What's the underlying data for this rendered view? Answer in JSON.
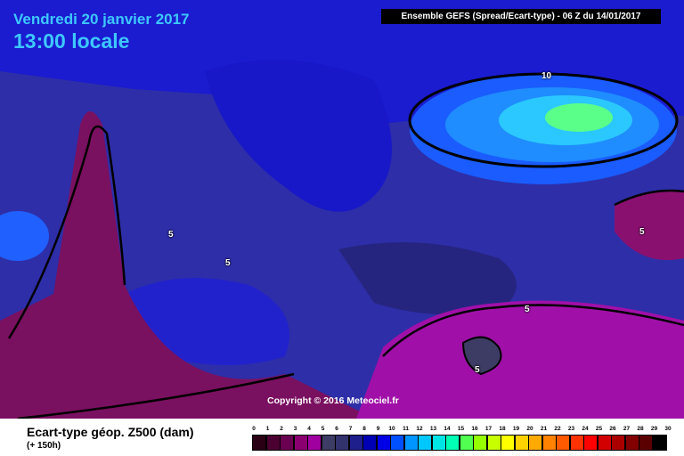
{
  "header": {
    "date": "Vendredi 20 janvier 2017",
    "local_time": "13:00 locale",
    "run_info": "Ensemble GEFS  (Spread/Ecart-type) - 06 Z du 14/01/2017"
  },
  "map": {
    "copyright": "Copyright © 2016 Meteociel.fr",
    "contour_labels": [
      {
        "text": "10"
      },
      {
        "text": "5"
      },
      {
        "text": "5"
      },
      {
        "text": "5"
      },
      {
        "text": "5"
      },
      {
        "text": "5"
      }
    ]
  },
  "footer": {
    "title": "Ecart-type géop. Z500 (dam)",
    "subtitle": "(+ 150h)"
  },
  "legend": {
    "ticks": [
      "0",
      "1",
      "2",
      "3",
      "4",
      "5",
      "6",
      "7",
      "8",
      "9",
      "10",
      "11",
      "12",
      "13",
      "14",
      "15",
      "16",
      "17",
      "18",
      "19",
      "20",
      "21",
      "22",
      "23",
      "24",
      "25",
      "26",
      "27",
      "28",
      "29",
      "30"
    ],
    "colors": [
      "#2a0014",
      "#4a0030",
      "#6a0050",
      "#8a0070",
      "#a000a0",
      "#3c3c64",
      "#32326e",
      "#1e1e8c",
      "#0000b4",
      "#0000e6",
      "#0050ff",
      "#0096ff",
      "#00c8ff",
      "#00e6e6",
      "#00ffb4",
      "#50ff50",
      "#96ff00",
      "#c8ff00",
      "#ffff00",
      "#ffd200",
      "#ffaa00",
      "#ff8200",
      "#ff5a00",
      "#ff3200",
      "#ff0000",
      "#d20000",
      "#aa0000",
      "#820000",
      "#5a0000",
      "#000000"
    ]
  }
}
